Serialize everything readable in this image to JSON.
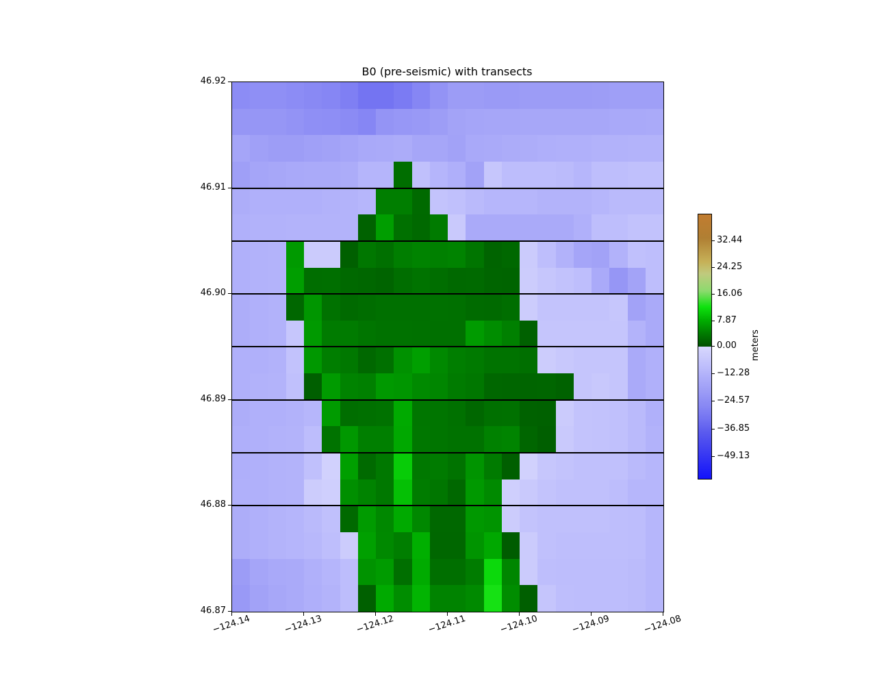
{
  "title": "B0 (pre-seismic) with transects",
  "chart_data": {
    "type": "heatmap",
    "title": "B0 (pre-seismic) with transects",
    "xlabel": "",
    "ylabel": "",
    "x_axis": {
      "tick_labels": [
        "−124.14",
        "−124.13",
        "−124.12",
        "−124.11",
        "−124.10",
        "−124.09",
        "−124.08"
      ],
      "tick_values": [
        -124.14,
        -124.13,
        -124.12,
        -124.11,
        -124.1,
        -124.09,
        -124.08
      ],
      "range": [
        -124.14,
        -124.08
      ],
      "tick_rotation_deg": 18
    },
    "y_axis": {
      "tick_labels": [
        "46.92",
        "46.91",
        "46.90",
        "46.89",
        "46.88",
        "46.87"
      ],
      "tick_values": [
        46.92,
        46.91,
        46.9,
        46.89,
        46.88,
        46.87
      ],
      "range": [
        46.87,
        46.92
      ]
    },
    "grid_shape": {
      "rows": 20,
      "cols": 24,
      "cell_deg": 0.0025
    },
    "values_unit": "meters",
    "elevation_grid_m": [
      [
        -25,
        -24,
        -24,
        -25,
        -26,
        -27,
        -29,
        -32,
        -32,
        -30,
        -27,
        -23,
        -20,
        -20,
        -20.5,
        -20.5,
        -20,
        -20,
        -20,
        -20,
        -19.5,
        -19,
        -19,
        -19
      ],
      [
        -22,
        -22,
        -22,
        -23,
        -24,
        -24.5,
        -25.5,
        -27,
        -22.5,
        -21.5,
        -21,
        -19.5,
        -17.5,
        -17,
        -16.5,
        -16.5,
        -16,
        -16,
        -16,
        -16,
        -16,
        -15.5,
        -15.5,
        -15
      ],
      [
        -17,
        -18.5,
        -19.5,
        -19.5,
        -18.5,
        -18,
        -17,
        -15.5,
        -15,
        -14.5,
        -16.5,
        -16.5,
        -18,
        -15.5,
        -15,
        -14.5,
        -14,
        -13.5,
        -13,
        -13,
        -12.5,
        -12.5,
        -12,
        -12
      ],
      [
        -19,
        -17,
        -16,
        -15.5,
        -15,
        -15,
        -14.5,
        -11.5,
        -11.5,
        2.8,
        -8,
        -11.5,
        -13.5,
        -18,
        -6,
        -9,
        -9,
        -9,
        -9.5,
        -11,
        -8.5,
        -8.5,
        -8,
        -8
      ],
      [
        -14,
        -13,
        -13,
        -13,
        -13,
        -12.5,
        -12,
        -11,
        4.2,
        4.2,
        2.5,
        -7,
        -8,
        -10,
        -11,
        -11,
        -11,
        -12,
        -12,
        -12,
        -11,
        -10,
        -10,
        -10
      ],
      [
        -13,
        -12.5,
        -12.5,
        -12,
        -12,
        -12,
        -12,
        1.8,
        6.8,
        3,
        2.4,
        4,
        -5,
        -15,
        -15,
        -15,
        -15,
        -15,
        -15,
        -13,
        -8.5,
        -8.5,
        -7.5,
        -7.5
      ],
      [
        -13,
        -12.5,
        -12,
        6.5,
        -4.5,
        -4.5,
        1.6,
        3.6,
        3,
        4.2,
        4.6,
        4.4,
        4.6,
        3.4,
        1.9,
        2.3,
        -4.5,
        -8.5,
        -12.5,
        -17,
        -18,
        -12.5,
        -8,
        -8.5
      ],
      [
        -13,
        -12.5,
        -12,
        6.8,
        2.8,
        2.9,
        2.4,
        2.2,
        1.9,
        2.8,
        3.3,
        2.8,
        2.4,
        2.5,
        2,
        1.9,
        -4,
        -6,
        -7.5,
        -8.5,
        -15,
        -22,
        -17.5,
        -8.5
      ],
      [
        -14,
        -13,
        -12.5,
        2.2,
        6.2,
        3.2,
        2.5,
        2.7,
        3,
        3,
        3,
        3.1,
        3,
        2.6,
        2.5,
        2.8,
        -4,
        -7,
        -7,
        -7,
        -7,
        -6,
        -18,
        -15
      ],
      [
        -14,
        -13,
        -12.5,
        -6,
        6.5,
        4,
        4,
        3.4,
        3.2,
        3.2,
        3.1,
        3,
        3,
        6.6,
        5.4,
        4.4,
        1.7,
        -6.5,
        -6.5,
        -6.5,
        -6.5,
        -6.5,
        -12,
        -15
      ],
      [
        -13,
        -13,
        -12.5,
        -7.5,
        6.3,
        4.2,
        3.7,
        2.3,
        3,
        5.8,
        6.9,
        5.1,
        4.2,
        3.9,
        3.3,
        3.3,
        2.9,
        -4,
        -5.5,
        -6.5,
        -6.5,
        -6.5,
        -15,
        -13
      ],
      [
        -13,
        -12.5,
        -12,
        -8,
        1.5,
        6.6,
        4.6,
        4.4,
        6.4,
        6.2,
        5.2,
        4.9,
        4,
        3.6,
        2.2,
        2.1,
        2,
        2.1,
        1.8,
        -6.5,
        -5.5,
        -6.5,
        -15,
        -13
      ],
      [
        -14,
        -13,
        -13,
        -12.5,
        -11,
        6.6,
        2.8,
        3,
        3.2,
        7.8,
        3.5,
        3.4,
        3.1,
        2.2,
        3,
        3.1,
        1.8,
        1.7,
        -4.5,
        -7,
        -7.5,
        -8,
        -10,
        -13
      ],
      [
        -13.5,
        -13,
        -12.5,
        -12,
        -9,
        3.3,
        6.3,
        4.3,
        4.3,
        7.6,
        3.6,
        3.4,
        3.2,
        3.2,
        4.5,
        4.7,
        2.1,
        1.5,
        -5,
        -7,
        -7.5,
        -8,
        -10,
        -12.5
      ],
      [
        -13.5,
        -13,
        -12.5,
        -12,
        -8,
        -2.5,
        6.9,
        2.5,
        3.7,
        10.5,
        3.7,
        4,
        3.3,
        6,
        4,
        1.5,
        -2.5,
        -6,
        -7,
        -8,
        -8,
        -8,
        -10,
        -11
      ],
      [
        -13,
        -13,
        -12.5,
        -12,
        -4,
        -3,
        5.6,
        4.6,
        3.7,
        9.5,
        4.1,
        3.5,
        2.3,
        6.4,
        5.2,
        -3,
        -5,
        -7,
        -8,
        -8,
        -8,
        -9,
        -11,
        -11
      ],
      [
        -14,
        -13,
        -12,
        -11.5,
        -10,
        -8,
        2.4,
        6.6,
        5,
        7.8,
        5,
        2.3,
        2.3,
        6.3,
        6,
        -4,
        -7,
        -8,
        -8,
        -8,
        -8,
        -8.5,
        -9,
        -11
      ],
      [
        -14,
        -13,
        -12,
        -11.5,
        -10.5,
        -8.5,
        -4,
        7,
        5.1,
        4.2,
        8.2,
        2.2,
        2.2,
        6,
        7.6,
        1.2,
        -4.5,
        -8,
        -8.5,
        -8.5,
        -8.5,
        -8.5,
        -9,
        -11
      ],
      [
        -20,
        -17,
        -15.5,
        -15,
        -13,
        -11.5,
        -9,
        5.9,
        6.6,
        2.9,
        7.9,
        2.9,
        2.9,
        4.1,
        11.5,
        4.9,
        -4.5,
        -8.5,
        -9,
        -9,
        -9,
        -9,
        -9.5,
        -11
      ],
      [
        -21,
        -18,
        -16,
        -15,
        -13.5,
        -12,
        -9,
        1.6,
        7.8,
        5.4,
        8.6,
        4.6,
        4.6,
        5.2,
        12.5,
        5.4,
        1.5,
        -6.5,
        -8.5,
        -9,
        -9,
        -9,
        -9.5,
        -11
      ]
    ],
    "transect_latitudes": [
      46.91,
      46.905,
      46.9,
      46.895,
      46.89,
      46.885,
      46.88
    ],
    "transect_color": "#000000",
    "colorbar": {
      "label": "meters",
      "tick_labels": [
        "32.44",
        "24.25",
        "16.06",
        "7.87",
        "0.00",
        "−12.28",
        "−24.57",
        "−36.85",
        "−49.13"
      ],
      "tick_values": [
        32.44,
        24.25,
        16.06,
        7.87,
        0.0,
        -12.28,
        -24.57,
        -36.85,
        -49.13
      ],
      "vmin": -59,
      "vmax": 40.6,
      "vcenter": 0
    },
    "colormap": {
      "land_stops": [
        [
          0,
          "#004e00"
        ],
        [
          0.1,
          "#007c00"
        ],
        [
          0.2,
          "#00ae00"
        ],
        [
          0.3,
          "#0ee20e"
        ],
        [
          0.42,
          "#8cda6e"
        ],
        [
          0.55,
          "#c0ca7e"
        ],
        [
          0.64,
          "#c6b158"
        ],
        [
          0.82,
          "#b07f33"
        ],
        [
          1,
          "#c17c30"
        ]
      ],
      "water_stops": [
        [
          0,
          "#1212fa"
        ],
        [
          0.2,
          "#3c3cf2"
        ],
        [
          0.35,
          "#5a5aee"
        ],
        [
          0.458,
          "#7474f2"
        ],
        [
          0.542,
          "#8686f4"
        ],
        [
          0.661,
          "#9c9cf6"
        ],
        [
          0.78,
          "#b0b0fa"
        ],
        [
          0.864,
          "#c0c0fc"
        ],
        [
          0.932,
          "#ccccfc"
        ],
        [
          1,
          "#d8d8fe"
        ]
      ]
    },
    "background": "#ffffff",
    "grid_on": false,
    "legend": "colorbar-right"
  }
}
